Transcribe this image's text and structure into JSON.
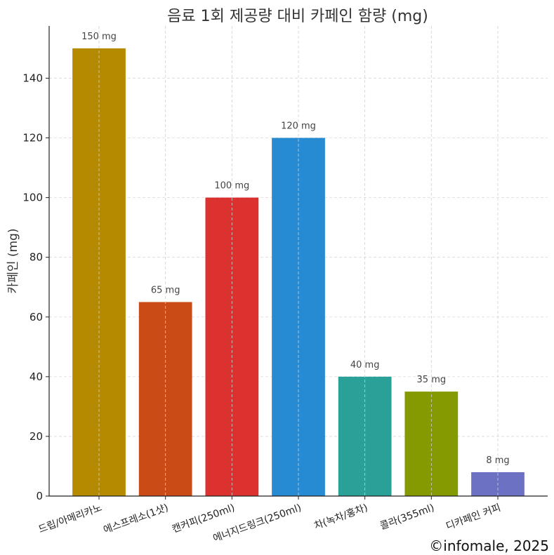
{
  "chart_data": {
    "type": "bar",
    "title": "음료 1회 제공량 대비 카페인 함량 (mg)",
    "xlabel": "",
    "ylabel": "카페인 (mg)",
    "ylim": [
      0,
      157.5
    ],
    "yticks": [
      0,
      20,
      40,
      60,
      80,
      100,
      120,
      140
    ],
    "grid": true,
    "categories": [
      "드립/아메리카노",
      "에스프레소(1샷)",
      "캔커피(250ml)",
      "에너지드링크(250ml)",
      "차(녹차/홍차)",
      "콜라(355ml)",
      "디카페인 커피"
    ],
    "values": [
      150,
      65,
      100,
      120,
      40,
      35,
      8
    ],
    "data_labels": [
      "150 mg",
      "65 mg",
      "100 mg",
      "120 mg",
      "40 mg",
      "35 mg",
      "8 mg"
    ],
    "colors": [
      "#b58900",
      "#cb4b16",
      "#dc322f",
      "#268bd2",
      "#2aa198",
      "#859900",
      "#6c71c4"
    ]
  },
  "watermark": "©infomale, 2025"
}
